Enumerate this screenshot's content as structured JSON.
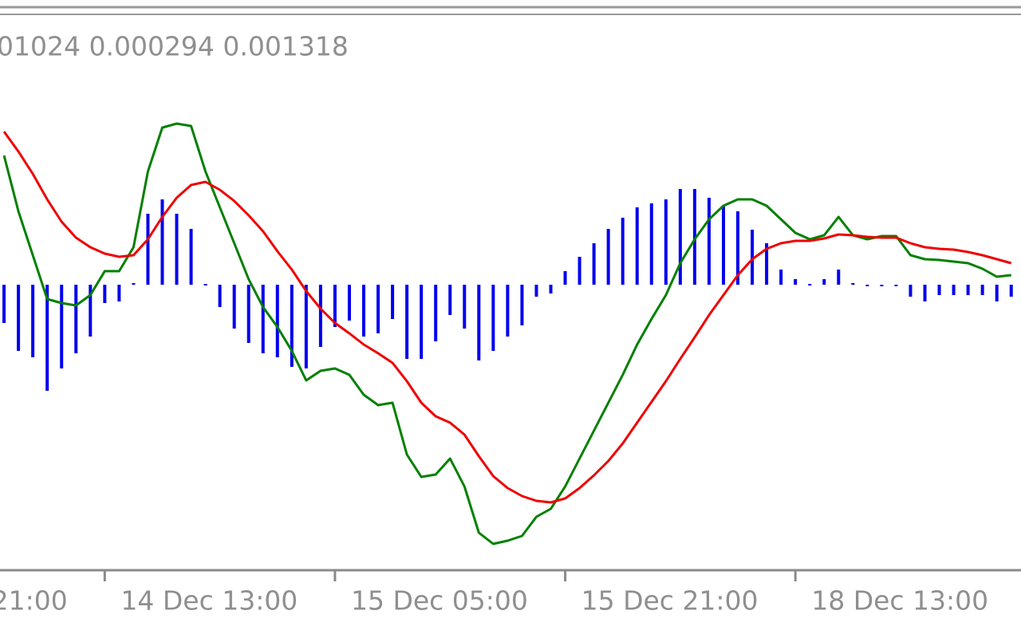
{
  "chart_data": {
    "type": "combo",
    "title": "01024 0.000294 0.001318",
    "xlim": [
      -0.28,
      70.68
    ],
    "ylim": [
      -3.58,
      3.37
    ],
    "xticks": [
      {
        "value": -9,
        "label": "21:00"
      },
      {
        "value": 7,
        "label": "14 Dec 13:00"
      },
      {
        "value": 23,
        "label": "15 Dec 05:00"
      },
      {
        "value": 39,
        "label": "15 Dec 21:00"
      },
      {
        "value": 55,
        "label": "18 Dec 13:00"
      }
    ],
    "series": [
      {
        "type": "bar",
        "color": "#0000ee",
        "values": [
          -0.48,
          -0.83,
          -0.91,
          -1.33,
          -1.05,
          -0.86,
          -0.65,
          -0.23,
          -0.21,
          0.02,
          0.89,
          1.07,
          0.89,
          0.7,
          0,
          -0.28,
          -0.55,
          -0.73,
          -0.86,
          -0.91,
          -1.03,
          -1.05,
          -0.78,
          -0.53,
          -0.45,
          -0.65,
          -0.61,
          -0.43,
          -0.93,
          -0.93,
          -0.71,
          -0.38,
          -0.55,
          -0.95,
          -0.83,
          -0.65,
          -0.51,
          -0.15,
          -0.11,
          0.17,
          0.35,
          0.52,
          0.7,
          0.84,
          0.97,
          1.02,
          1.07,
          1.2,
          1.2,
          1.09,
          0.99,
          0.92,
          0.69,
          0.52,
          0.19,
          0.07,
          0,
          0.07,
          0.19,
          0.02,
          -0.01,
          -0.01,
          -0.01,
          -0.15,
          -0.21,
          -0.13,
          -0.13,
          -0.13,
          -0.13,
          -0.21,
          -0.15
        ]
      },
      {
        "type": "line",
        "color": "#008000",
        "values": [
          1.62,
          0.92,
          0.37,
          -0.18,
          -0.23,
          -0.26,
          -0.13,
          0.17,
          0.17,
          0.47,
          1.42,
          1.97,
          2.02,
          1.99,
          1.42,
          0.97,
          0.52,
          0.07,
          -0.28,
          -0.53,
          -0.83,
          -1.2,
          -1.08,
          -1.05,
          -1.13,
          -1.38,
          -1.51,
          -1.48,
          -2.13,
          -2.41,
          -2.38,
          -2.18,
          -2.53,
          -3.11,
          -3.25,
          -3.21,
          -3.15,
          -2.91,
          -2.81,
          -2.53,
          -2.18,
          -1.83,
          -1.48,
          -1.13,
          -0.75,
          -0.43,
          -0.13,
          0.27,
          0.57,
          0.82,
          0.99,
          1.07,
          1.07,
          0.99,
          0.82,
          0.65,
          0.57,
          0.62,
          0.85,
          0.62,
          0.57,
          0.61,
          0.61,
          0.37,
          0.32,
          0.31,
          0.29,
          0.27,
          0.2,
          0.1,
          0.12
        ]
      },
      {
        "type": "line",
        "color": "#ee0000",
        "values": [
          1.92,
          1.67,
          1.39,
          1.07,
          0.79,
          0.59,
          0.47,
          0.39,
          0.35,
          0.37,
          0.57,
          0.85,
          1.09,
          1.25,
          1.29,
          1.19,
          1.05,
          0.87,
          0.67,
          0.42,
          0.19,
          -0.08,
          -0.3,
          -0.48,
          -0.61,
          -0.75,
          -0.86,
          -0.98,
          -1.21,
          -1.48,
          -1.65,
          -1.73,
          -1.88,
          -2.15,
          -2.4,
          -2.55,
          -2.65,
          -2.71,
          -2.73,
          -2.68,
          -2.55,
          -2.39,
          -2.21,
          -1.99,
          -1.73,
          -1.47,
          -1.21,
          -0.93,
          -0.66,
          -0.38,
          -0.13,
          0.12,
          0.32,
          0.45,
          0.52,
          0.55,
          0.55,
          0.58,
          0.63,
          0.62,
          0.6,
          0.59,
          0.59,
          0.52,
          0.47,
          0.45,
          0.44,
          0.41,
          0.37,
          0.32,
          0.27
        ]
      }
    ]
  }
}
